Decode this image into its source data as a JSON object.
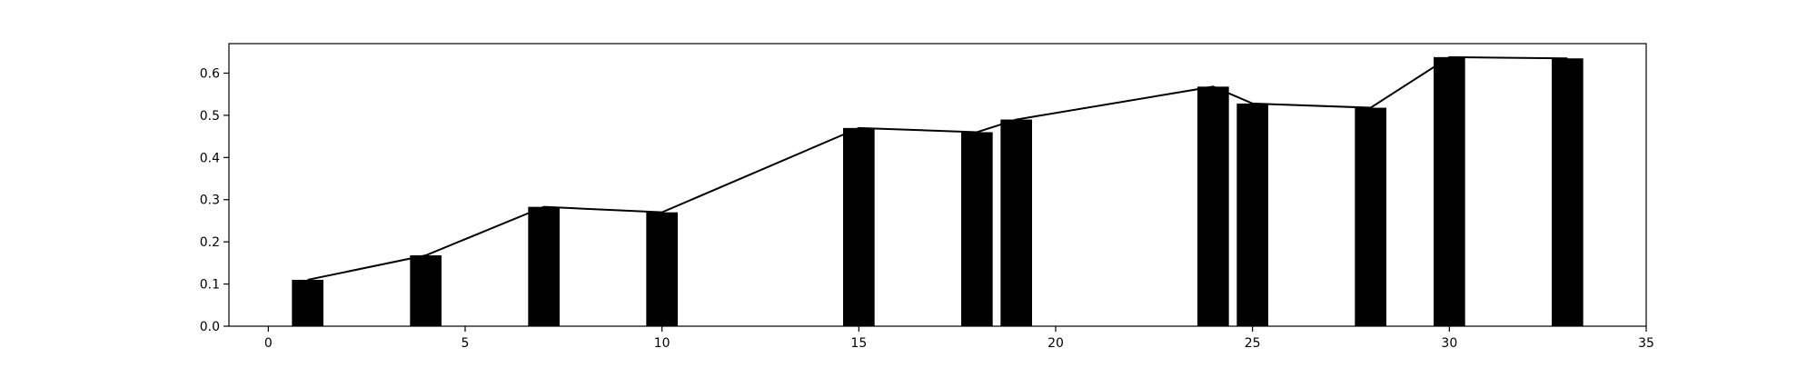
{
  "chart_data": {
    "type": "bar",
    "bars": [
      {
        "x": 1,
        "value": 0.11
      },
      {
        "x": 4,
        "value": 0.168
      },
      {
        "x": 7,
        "value": 0.283
      },
      {
        "x": 10,
        "value": 0.27
      },
      {
        "x": 15,
        "value": 0.47
      },
      {
        "x": 18,
        "value": 0.46
      },
      {
        "x": 19,
        "value": 0.49
      },
      {
        "x": 24,
        "value": 0.568
      },
      {
        "x": 25,
        "value": 0.528
      },
      {
        "x": 28,
        "value": 0.518
      },
      {
        "x": 30,
        "value": 0.638
      },
      {
        "x": 33,
        "value": 0.635
      }
    ],
    "bar_width": 0.8,
    "line_series": {
      "x": [
        1,
        4,
        7,
        10,
        15,
        18,
        19,
        24,
        25,
        28,
        30,
        33
      ],
      "y": [
        0.11,
        0.168,
        0.283,
        0.27,
        0.47,
        0.46,
        0.49,
        0.568,
        0.528,
        0.518,
        0.638,
        0.635
      ]
    },
    "xlim": [
      -1,
      35
    ],
    "ylim": [
      0,
      0.67
    ],
    "xticks": [
      0,
      5,
      10,
      15,
      20,
      25,
      30,
      35
    ],
    "yticks": [
      0.0,
      0.1,
      0.2,
      0.3,
      0.4,
      0.5,
      0.6
    ],
    "xtick_labels": [
      "0",
      "5",
      "10",
      "15",
      "20",
      "25",
      "30",
      "35"
    ],
    "ytick_labels": [
      "0.0",
      "0.1",
      "0.2",
      "0.3",
      "0.4",
      "0.5",
      "0.6"
    ],
    "title": "",
    "xlabel": "",
    "ylabel": "",
    "grid": false,
    "colors": {
      "bar": "#000000",
      "line": "#000000",
      "axes": "#000000"
    }
  }
}
